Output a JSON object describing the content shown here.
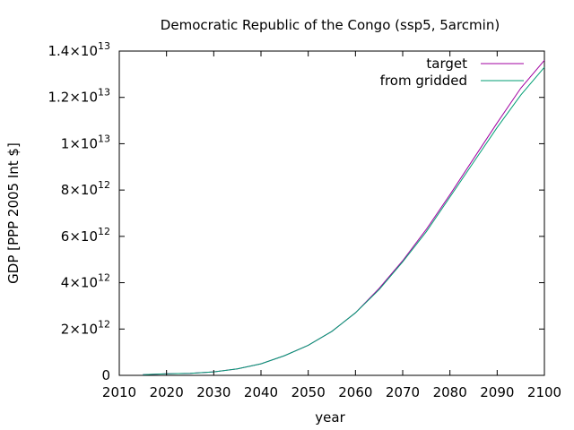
{
  "chart_data": {
    "type": "line",
    "title": "Democratic Republic of the Congo (ssp5, 5arcmin)",
    "xlabel": "year",
    "ylabel": "GDP [PPP 2005 Int $]",
    "xlim": [
      2010,
      2100
    ],
    "ylim": [
      0,
      14000000000000
    ],
    "grid": false,
    "legend_position": "top-right",
    "x_ticks": [
      {
        "value": 2010,
        "label": "2010"
      },
      {
        "value": 2020,
        "label": "2020"
      },
      {
        "value": 2030,
        "label": "2030"
      },
      {
        "value": 2040,
        "label": "2040"
      },
      {
        "value": 2050,
        "label": "2050"
      },
      {
        "value": 2060,
        "label": "2060"
      },
      {
        "value": 2070,
        "label": "2070"
      },
      {
        "value": 2080,
        "label": "2080"
      },
      {
        "value": 2090,
        "label": "2090"
      },
      {
        "value": 2100,
        "label": "2100"
      }
    ],
    "y_ticks": [
      {
        "value": 0,
        "mantissa": "0",
        "exponent": ""
      },
      {
        "value": 2000000000000,
        "mantissa": "2×10",
        "exponent": "12"
      },
      {
        "value": 4000000000000,
        "mantissa": "4×10",
        "exponent": "12"
      },
      {
        "value": 6000000000000,
        "mantissa": "6×10",
        "exponent": "12"
      },
      {
        "value": 8000000000000,
        "mantissa": "8×10",
        "exponent": "12"
      },
      {
        "value": 10000000000000,
        "mantissa": "1×10",
        "exponent": "13"
      },
      {
        "value": 12000000000000,
        "mantissa": "1.2×10",
        "exponent": "13"
      },
      {
        "value": 14000000000000,
        "mantissa": "1.4×10",
        "exponent": "13"
      }
    ],
    "series": [
      {
        "name": "target",
        "color": "#a000a0",
        "x": [
          2015,
          2020,
          2025,
          2030,
          2035,
          2040,
          2045,
          2050,
          2055,
          2060,
          2065,
          2070,
          2075,
          2080,
          2085,
          2090,
          2095,
          2100
        ],
        "y": [
          30000000000,
          70000000000,
          90000000000,
          150000000000,
          280000000000,
          500000000000,
          850000000000,
          1300000000000,
          1900000000000,
          2700000000000,
          3750000000000,
          4950000000000,
          6300000000000,
          7800000000000,
          9350000000000,
          10900000000000,
          12400000000000,
          13600000000000
        ]
      },
      {
        "name": "from gridded",
        "color": "#009e73",
        "x": [
          2015,
          2020,
          2025,
          2030,
          2035,
          2040,
          2045,
          2050,
          2055,
          2060,
          2065,
          2070,
          2075,
          2080,
          2085,
          2090,
          2095,
          2100
        ],
        "y": [
          30000000000,
          70000000000,
          90000000000,
          150000000000,
          280000000000,
          500000000000,
          850000000000,
          1300000000000,
          1900000000000,
          2700000000000,
          3700000000000,
          4900000000000,
          6200000000000,
          7700000000000,
          9200000000000,
          10700000000000,
          12100000000000,
          13300000000000
        ]
      }
    ]
  }
}
